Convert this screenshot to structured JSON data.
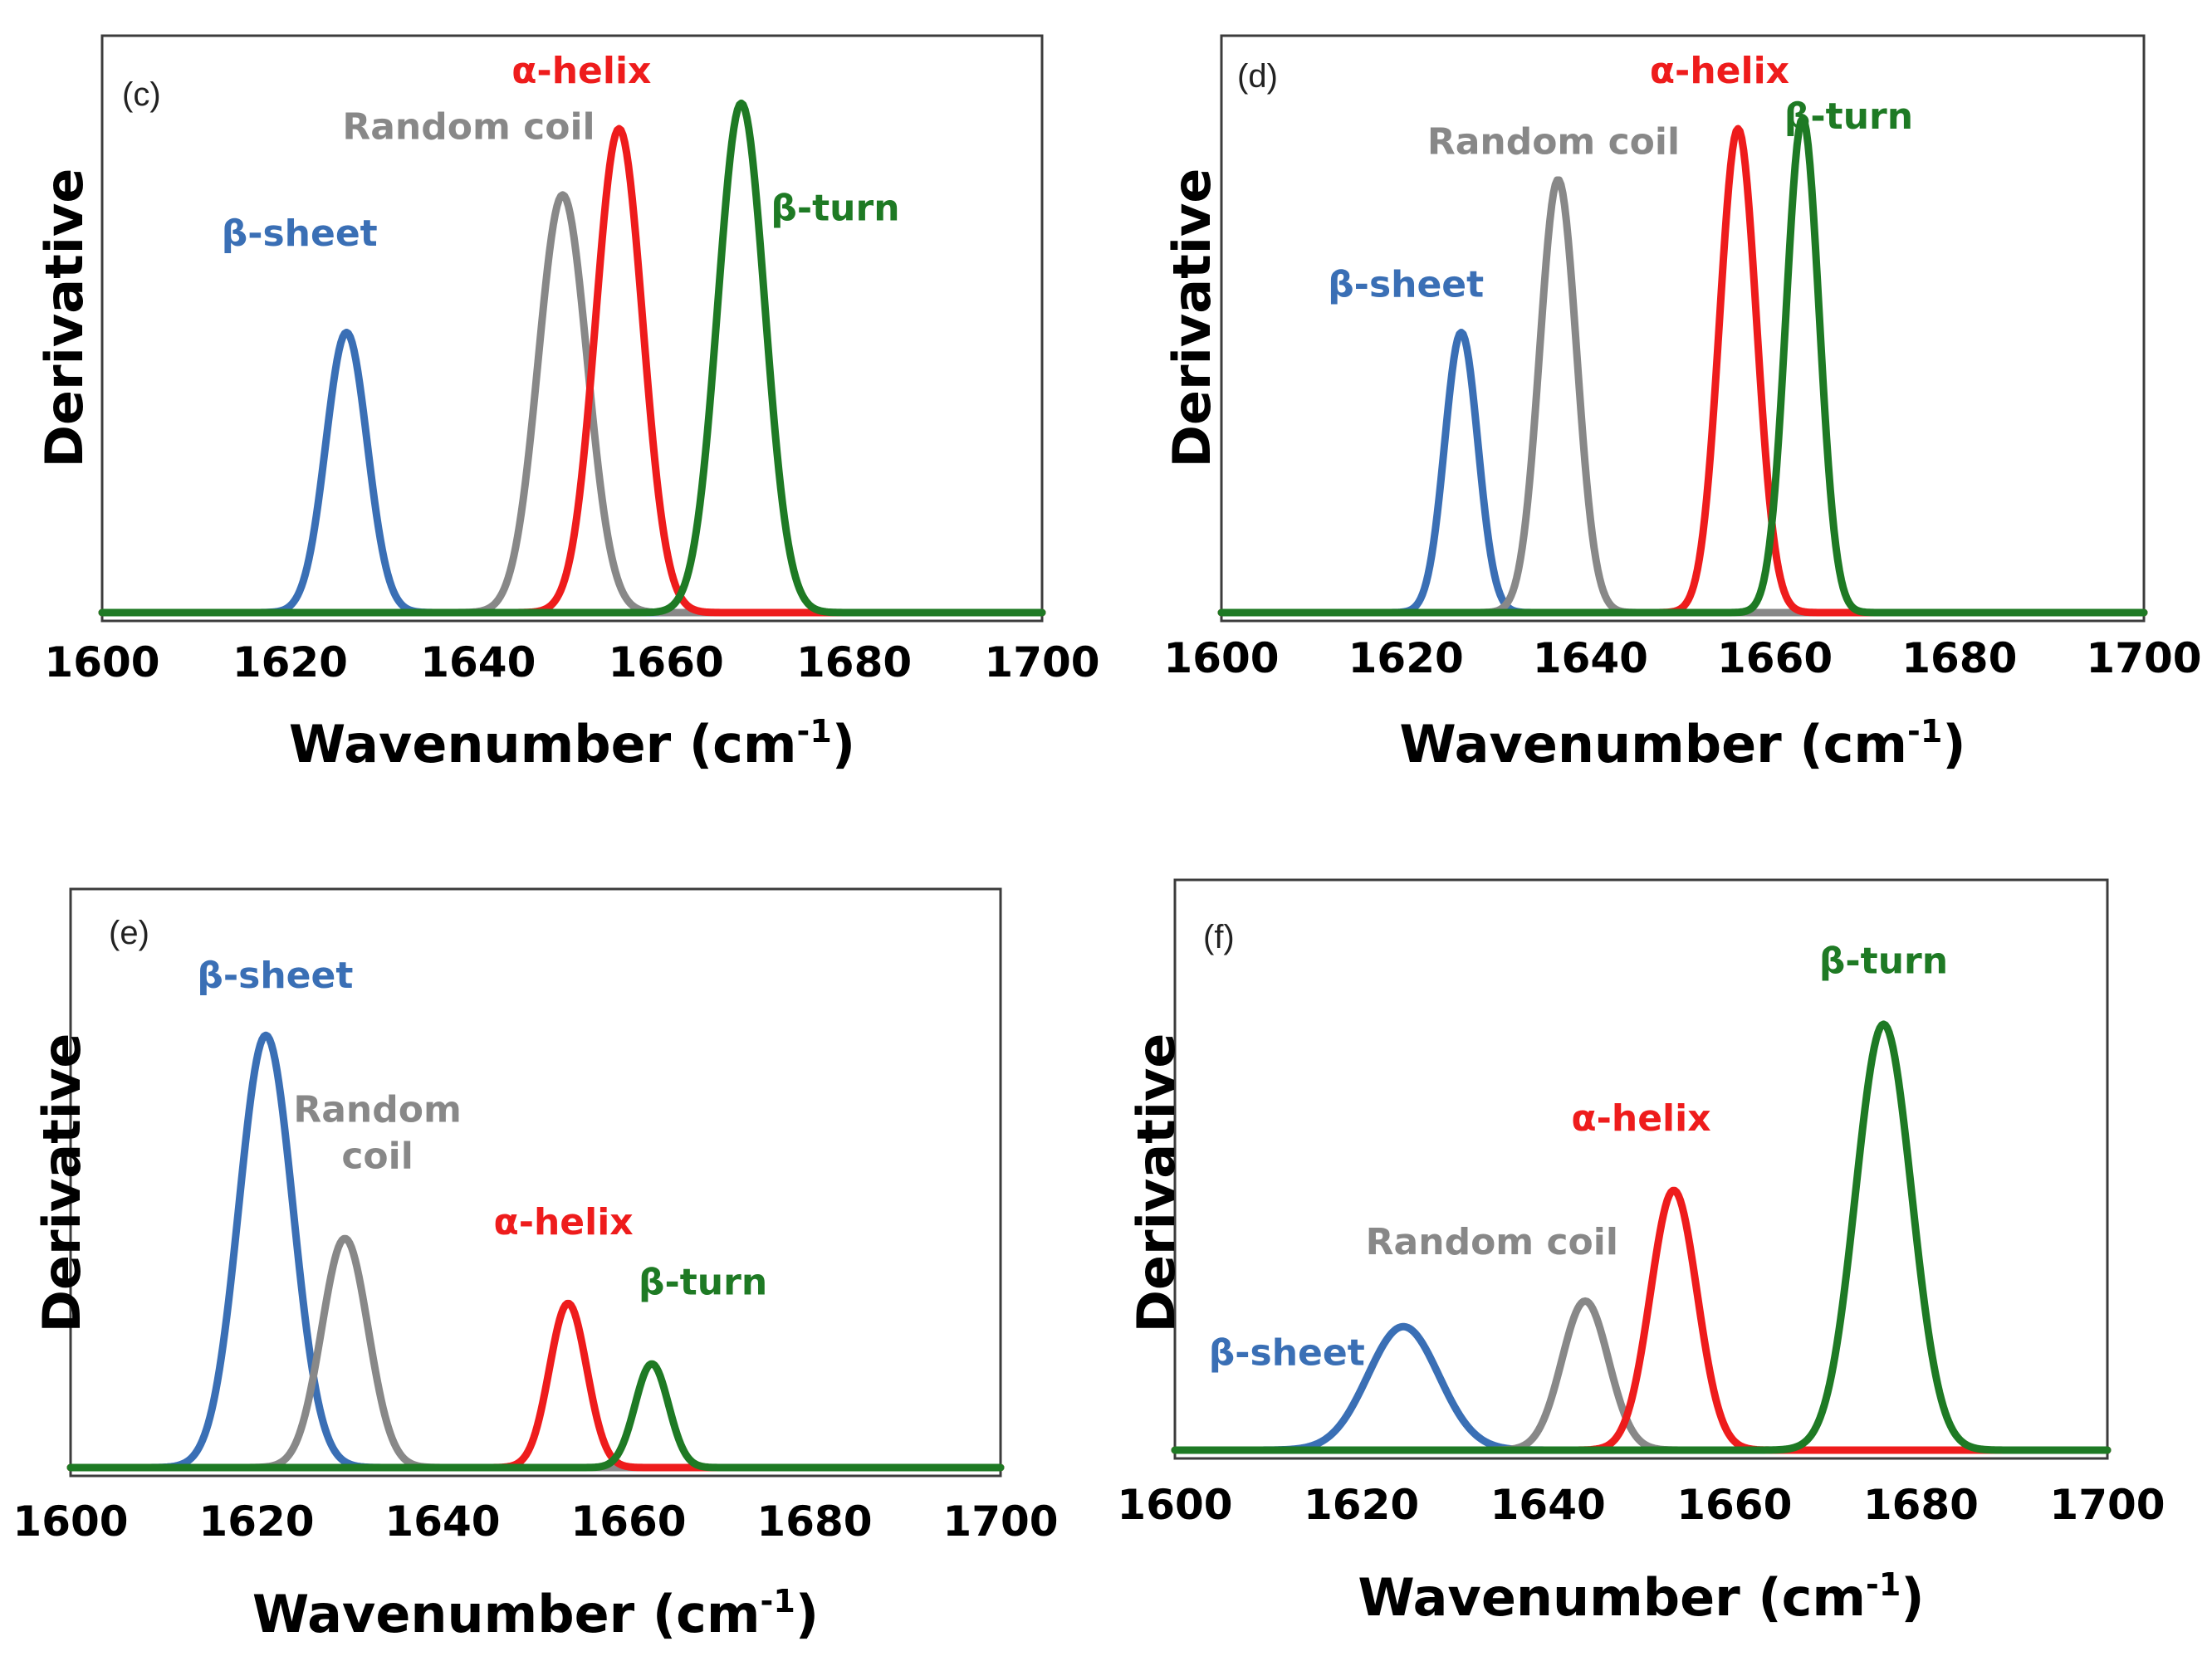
{
  "colors": {
    "beta_sheet": "#3a6fb5",
    "random_coil": "#888888",
    "alpha_helix": "#ee1c1c",
    "beta_turn": "#1e7a24",
    "frame": "#3c3c3c"
  },
  "chart_data": [
    {
      "type": "line",
      "panel": "(c)",
      "xlabel_main": "Wavenumber (cm",
      "xlabel_sup": "-1",
      "xlabel_close": ")",
      "ylabel": "Derivative",
      "xlim": [
        1600,
        1700
      ],
      "ylim": [
        0,
        1.1
      ],
      "xticks": [
        "1600",
        "1620",
        "1640",
        "1660",
        "1680",
        "1700"
      ],
      "series": [
        {
          "name": "β-sheet",
          "key": "beta_sheet",
          "center": 1626,
          "sigma": 2.2,
          "amp": 0.55
        },
        {
          "name": "Random coil",
          "key": "random_coil",
          "center": 1649,
          "sigma": 2.6,
          "amp": 0.82
        },
        {
          "name": "α-helix",
          "key": "alpha_helix",
          "center": 1655,
          "sigma": 2.5,
          "amp": 0.95
        },
        {
          "name": "β-turn",
          "key": "beta_turn",
          "center": 1668,
          "sigma": 2.5,
          "amp": 1.0
        }
      ],
      "labels": [
        {
          "text": "β-sheet",
          "key": "beta_sheet",
          "x": 1621,
          "y": 0.72
        },
        {
          "text": "Random coil",
          "key": "random_coil",
          "x": 1639,
          "y": 0.93
        },
        {
          "text": "α-helix",
          "key": "alpha_helix",
          "x": 1651,
          "y": 1.04
        },
        {
          "text": "β-turn",
          "key": "beta_turn",
          "x": 1678,
          "y": 0.77
        }
      ]
    },
    {
      "type": "line",
      "panel": "(d)",
      "xlabel_main": "Wavenumber (cm",
      "xlabel_sup": "-1",
      "xlabel_close": ")",
      "ylabel": "Derivative",
      "xlim": [
        1600,
        1700
      ],
      "ylim": [
        0,
        1.1
      ],
      "xticks": [
        "1600",
        "1620",
        "1640",
        "1660",
        "1680",
        "1700"
      ],
      "series": [
        {
          "name": "β-sheet",
          "key": "beta_sheet",
          "center": 1626,
          "sigma": 1.8,
          "amp": 0.55
        },
        {
          "name": "Random coil",
          "key": "random_coil",
          "center": 1636.5,
          "sigma": 2.0,
          "amp": 0.85
        },
        {
          "name": "α-helix",
          "key": "alpha_helix",
          "center": 1656,
          "sigma": 2.0,
          "amp": 0.95
        },
        {
          "name": "β-turn",
          "key": "beta_turn",
          "center": 1663,
          "sigma": 1.8,
          "amp": 0.97
        }
      ],
      "labels": [
        {
          "text": "β-sheet",
          "key": "beta_sheet",
          "x": 1620,
          "y": 0.62
        },
        {
          "text": "Random coil",
          "key": "random_coil",
          "x": 1636,
          "y": 0.9
        },
        {
          "text": "α-helix",
          "key": "alpha_helix",
          "x": 1654,
          "y": 1.04
        },
        {
          "text": "β-turn",
          "key": "beta_turn",
          "x": 1668,
          "y": 0.95
        }
      ]
    },
    {
      "type": "line",
      "panel": "(e)",
      "xlabel_main": "Wavenumber (cm",
      "xlabel_sup": "-1",
      "xlabel_close": ")",
      "ylabel": "Derivative",
      "xlim": [
        1600,
        1700
      ],
      "ylim": [
        0,
        1.3
      ],
      "xticks": [
        "1600",
        "1620",
        "1640",
        "1660",
        "1680",
        "1700"
      ],
      "series": [
        {
          "name": "β-sheet",
          "key": "beta_sheet",
          "center": 1621,
          "sigma": 2.9,
          "amp": 1.0
        },
        {
          "name": "Random coil",
          "key": "random_coil",
          "center": 1629.5,
          "sigma": 2.5,
          "amp": 0.53
        },
        {
          "name": "α-helix",
          "key": "alpha_helix",
          "center": 1653.5,
          "sigma": 2.0,
          "amp": 0.38
        },
        {
          "name": "β-turn",
          "key": "beta_turn",
          "center": 1662.5,
          "sigma": 1.8,
          "amp": 0.24
        }
      ],
      "labels": [
        {
          "text": "β-sheet",
          "key": "beta_sheet",
          "x": 1622,
          "y": 1.11
        },
        {
          "text": "Random coil",
          "key": "random_coil",
          "x": 1633,
          "y": 0.8
        },
        {
          "text": "α-helix",
          "key": "alpha_helix",
          "x": 1653,
          "y": 0.54
        },
        {
          "text": "β-turn",
          "key": "beta_turn",
          "x": 1668,
          "y": 0.4
        }
      ]
    },
    {
      "type": "line",
      "panel": "(f)",
      "xlabel_main": "Wavenumber (cm",
      "xlabel_sup": "-1",
      "xlabel_close": ")",
      "ylabel": "Derivative",
      "xlim": [
        1600,
        1700
      ],
      "ylim": [
        0,
        1.3
      ],
      "xticks": [
        "1600",
        "1620",
        "1640",
        "1660",
        "1680",
        "1700"
      ],
      "series": [
        {
          "name": "β-sheet",
          "key": "beta_sheet",
          "center": 1624.5,
          "sigma": 3.8,
          "amp": 0.29
        },
        {
          "name": "Random coil",
          "key": "random_coil",
          "center": 1644,
          "sigma": 2.5,
          "amp": 0.35
        },
        {
          "name": "α-helix",
          "key": "alpha_helix",
          "center": 1653.5,
          "sigma": 2.5,
          "amp": 0.61
        },
        {
          "name": "β-turn",
          "key": "beta_turn",
          "center": 1676,
          "sigma": 3.0,
          "amp": 1.0
        }
      ],
      "labels": [
        {
          "text": "β-sheet",
          "key": "beta_sheet",
          "x": 1612,
          "y": 0.2
        },
        {
          "text": "Random coil",
          "key": "random_coil",
          "x": 1634,
          "y": 0.46
        },
        {
          "text": "α-helix",
          "key": "alpha_helix",
          "x": 1650,
          "y": 0.75
        },
        {
          "text": "β-turn",
          "key": "beta_turn",
          "x": 1676,
          "y": 1.12
        }
      ]
    }
  ]
}
